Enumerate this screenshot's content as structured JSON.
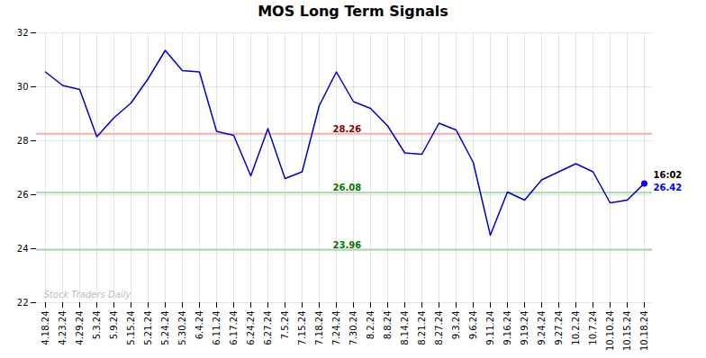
{
  "chart_data": {
    "type": "line",
    "title": "MOS Long Term Signals",
    "categories": [
      "4.18.24",
      "4.23.24",
      "4.29.24",
      "5.3.24",
      "5.9.24",
      "5.15.24",
      "5.21.24",
      "5.24.24",
      "5.30.24",
      "6.4.24",
      "6.11.24",
      "6.17.24",
      "6.24.24",
      "6.27.24",
      "7.5.24",
      "7.15.24",
      "7.18.24",
      "7.24.24",
      "7.30.24",
      "8.2.24",
      "8.8.24",
      "8.14.24",
      "8.21.24",
      "8.27.24",
      "9.3.24",
      "9.6.24",
      "9.11.24",
      "9.16.24",
      "9.19.24",
      "9.24.24",
      "9.27.24",
      "10.2.24",
      "10.7.24",
      "10.10.24",
      "10.15.24",
      "10.18.24"
    ],
    "values": [
      30.55,
      30.05,
      29.9,
      28.15,
      28.85,
      29.4,
      30.3,
      31.35,
      30.6,
      30.55,
      28.35,
      28.2,
      26.7,
      28.45,
      26.6,
      26.85,
      29.3,
      30.55,
      29.45,
      29.2,
      28.55,
      27.55,
      27.5,
      28.65,
      28.4,
      27.2,
      24.5,
      26.1,
      25.8,
      26.55,
      26.85,
      27.15,
      26.85,
      25.7,
      25.8,
      26.42
    ],
    "color": "#0000cc",
    "ylim": [
      22,
      32
    ],
    "yticks": [
      22,
      24,
      26,
      28,
      30,
      32
    ],
    "grid": true,
    "reference_lines": [
      {
        "value": 28.26,
        "color": "#ffaaaa",
        "label": "28.26",
        "label_color": "#880000",
        "at": "7.24.24"
      },
      {
        "value": 26.08,
        "color": "#aaddaa",
        "label": "26.08",
        "label_color": "#007700",
        "at": "7.24.24"
      },
      {
        "value": 23.96,
        "color": "#aaddaa",
        "label": "23.96",
        "label_color": "#007700",
        "at": "7.24.24"
      }
    ],
    "last_point": {
      "value": 26.42,
      "label": "26.42",
      "color": "#0000ff",
      "time": "16:02",
      "time_color": "#000000"
    },
    "watermark": {
      "text": "Stock Traders Daily",
      "color": "#bbbbbb"
    }
  }
}
